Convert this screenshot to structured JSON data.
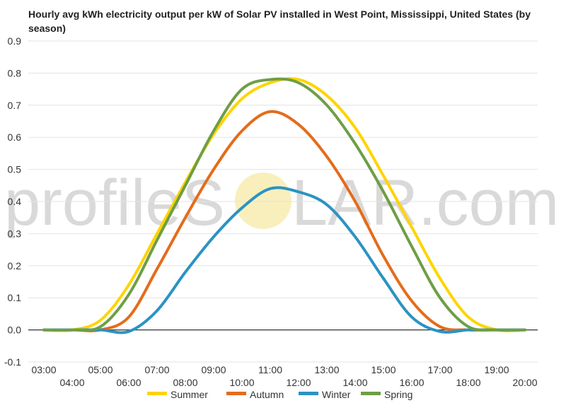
{
  "chart_data": {
    "type": "line",
    "title": "Hourly avg kWh electricity output per kW of Solar PV installed in West Point, Mississippi, United States (by season)",
    "xlabel": "",
    "ylabel": "",
    "ylim": [
      -0.1,
      0.9
    ],
    "y_ticks": [
      "-0.1",
      "0.0",
      "0.1",
      "0.2",
      "0.3",
      "0.4",
      "0.5",
      "0.6",
      "0.7",
      "0.8",
      "0.9"
    ],
    "x": [
      "03:00",
      "04:00",
      "05:00",
      "06:00",
      "07:00",
      "08:00",
      "09:00",
      "10:00",
      "11:00",
      "12:00",
      "13:00",
      "14:00",
      "15:00",
      "16:00",
      "17:00",
      "18:00",
      "19:00",
      "20:00"
    ],
    "grid": true,
    "legend": "bottom",
    "series": [
      {
        "name": "Summer",
        "color": "#ffd400",
        "values": [
          0.0,
          0.0,
          0.03,
          0.14,
          0.3,
          0.46,
          0.61,
          0.72,
          0.77,
          0.78,
          0.73,
          0.63,
          0.48,
          0.32,
          0.16,
          0.04,
          0.0,
          0.0
        ]
      },
      {
        "name": "Autumn",
        "color": "#e46c1b",
        "values": [
          0.0,
          0.0,
          0.0,
          0.04,
          0.19,
          0.35,
          0.5,
          0.62,
          0.68,
          0.64,
          0.54,
          0.4,
          0.23,
          0.09,
          0.01,
          0.0,
          0.0,
          0.0
        ]
      },
      {
        "name": "Winter",
        "color": "#2b93c2",
        "values": [
          0.0,
          0.0,
          0.0,
          -0.005,
          0.06,
          0.18,
          0.29,
          0.38,
          0.44,
          0.43,
          0.39,
          0.29,
          0.16,
          0.04,
          -0.005,
          0.0,
          0.0,
          0.0
        ]
      },
      {
        "name": "Spring",
        "color": "#6e9e46",
        "values": [
          0.0,
          0.0,
          0.01,
          0.11,
          0.28,
          0.45,
          0.62,
          0.75,
          0.78,
          0.77,
          0.7,
          0.58,
          0.43,
          0.26,
          0.1,
          0.01,
          0.0,
          0.0
        ]
      }
    ]
  },
  "watermark": {
    "left": "profileS",
    "right": "LAR.com"
  }
}
